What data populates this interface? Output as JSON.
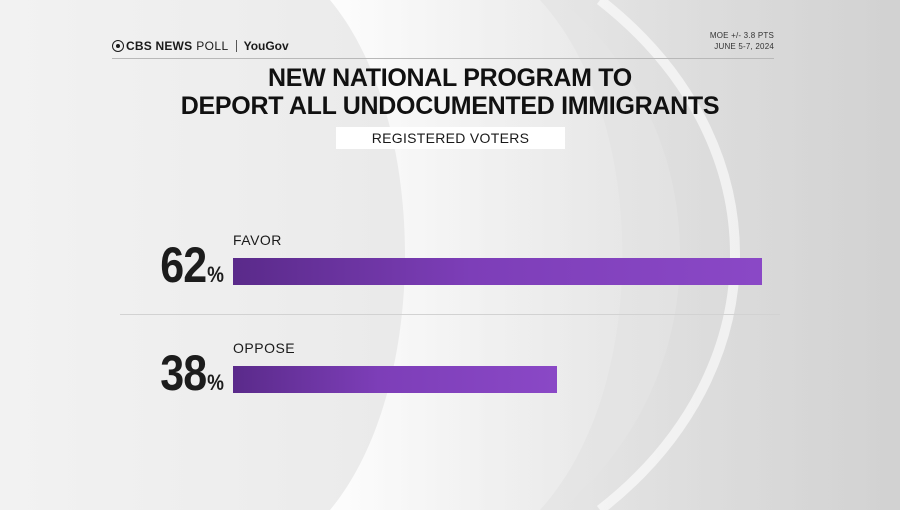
{
  "header": {
    "brand": "CBS NEWS",
    "brand_suffix": "POLL",
    "partner": "YouGov",
    "moe": "MOE +/- 3.8 PTS",
    "dates": "JUNE 5-7, 2024"
  },
  "title_lines": [
    "NEW NATIONAL PROGRAM TO",
    "DEPORT ALL UNDOCUMENTED IMMIGRANTS"
  ],
  "subtitle": "REGISTERED VOTERS",
  "colors": {
    "bar": "#7d3eb8",
    "text": "#1a1a1a",
    "background": "#ececec"
  },
  "chart_data": {
    "type": "bar",
    "orientation": "horizontal",
    "title": "NEW NATIONAL PROGRAM TO DEPORT ALL UNDOCUMENTED IMMIGRANTS",
    "subtitle": "REGISTERED VOTERS",
    "categories": [
      "FAVOR",
      "OPPOSE"
    ],
    "values": [
      62,
      38
    ],
    "value_labels": [
      "62",
      "38"
    ],
    "value_suffix": "%",
    "unit": "%",
    "xlim": [
      0,
      62
    ],
    "grid": false,
    "legend": "none"
  }
}
